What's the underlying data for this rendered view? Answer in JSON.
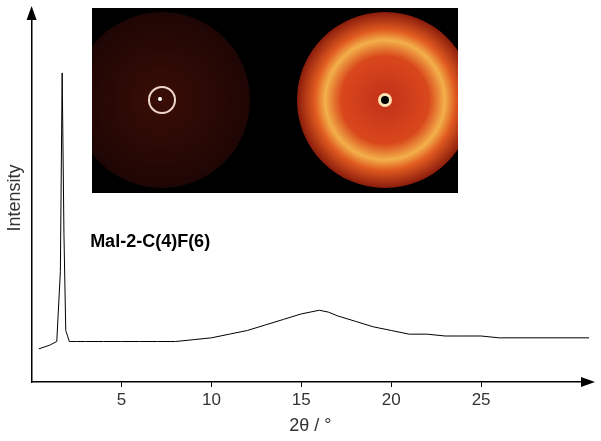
{
  "chart_data": {
    "type": "line",
    "annotation": "Mal-2-C(4)F(6)",
    "x_label": "2θ / °",
    "y_label": "Intensity",
    "x": [
      0.4,
      1.0,
      1.4,
      1.6,
      1.7,
      1.8,
      1.9,
      2.1,
      2.5,
      3,
      4,
      5,
      6,
      7,
      8,
      9,
      10,
      11,
      12,
      13,
      14,
      15,
      16,
      16.5,
      17,
      18,
      19,
      20,
      21,
      22,
      23,
      24,
      25,
      26,
      28,
      30,
      31
    ],
    "values": [
      9,
      10,
      11,
      30,
      84,
      40,
      14,
      11,
      11,
      11,
      11,
      11,
      11,
      11,
      11,
      11.5,
      12,
      13,
      14,
      15.5,
      17,
      18.5,
      19.5,
      19,
      18,
      16.5,
      15,
      14,
      13,
      13,
      12.5,
      12.5,
      12.5,
      12,
      12,
      12,
      12
    ],
    "color": "#000000",
    "xlim": [
      0,
      31
    ],
    "xticks": [
      5,
      10,
      15,
      20,
      25
    ],
    "ylim": [
      0,
      100
    ],
    "grid": false,
    "tick_labels": "x"
  }
}
